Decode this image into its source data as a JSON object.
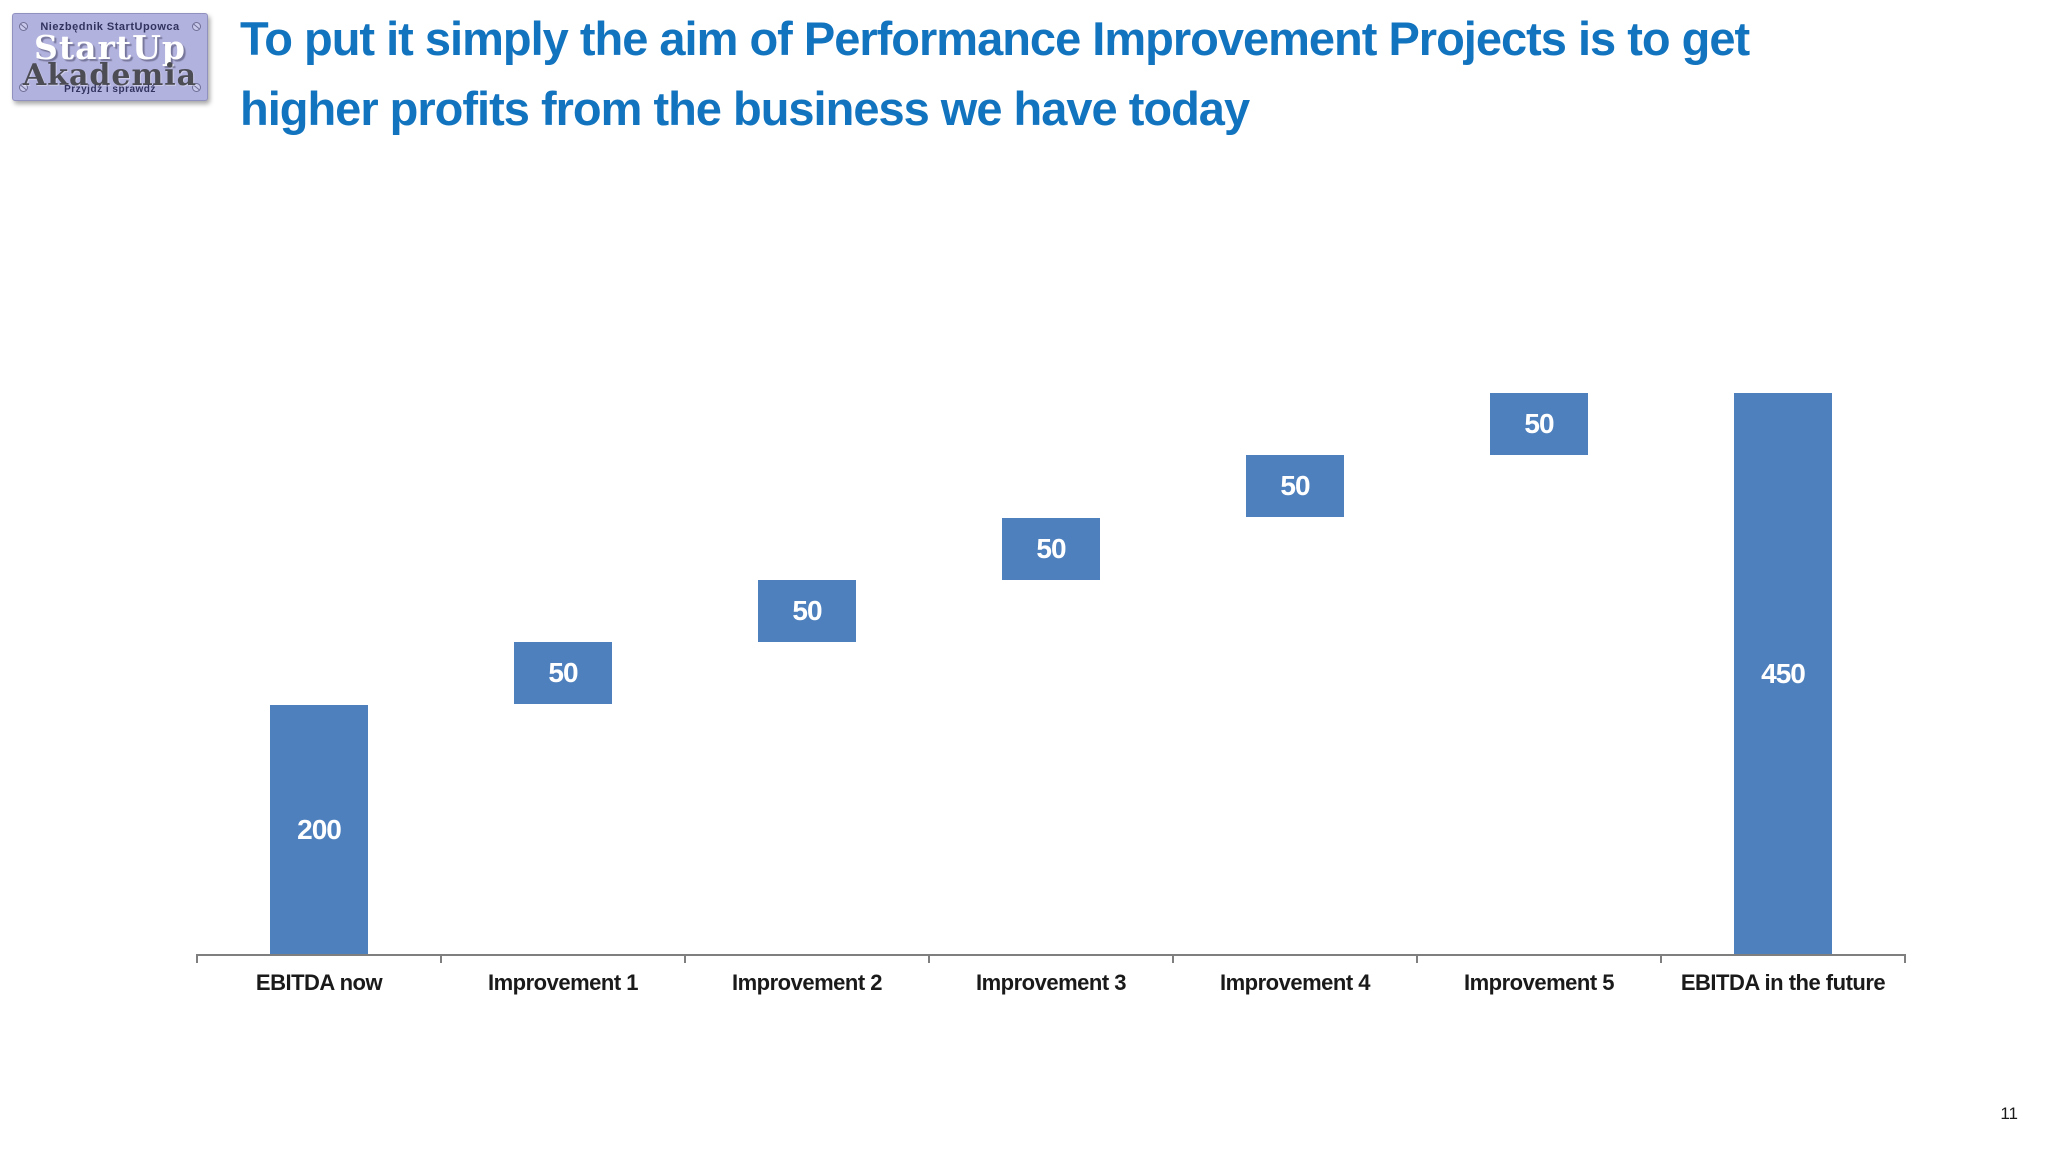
{
  "slide": {
    "page_number": "11"
  },
  "logo": {
    "top_text": "Niezbędnik StartUpowca",
    "title_line1": "StartUp",
    "title_line2": "Akademia",
    "bottom_text": "Przyjdź i sprawdź"
  },
  "title": {
    "lines": [
      "To put it simply the aim of Performance Improvement Projects is to get",
      "higher profits from the business we have today"
    ],
    "color": "#1273BE"
  },
  "chart_data": {
    "type": "bar",
    "subtype": "waterfall",
    "title": "",
    "categories": [
      "EBITDA now",
      "Improvement 1",
      "Improvement 2",
      "Improvement 3",
      "Improvement 4",
      "Improvement 5",
      "EBITDA in the future"
    ],
    "values": [
      200,
      50,
      50,
      50,
      50,
      50,
      450
    ],
    "starts": [
      0,
      200,
      250,
      300,
      350,
      400,
      0
    ],
    "value_labels": [
      "200",
      "50",
      "50",
      "50",
      "50",
      "50",
      "450"
    ],
    "value_label_position": "center-inside",
    "bar_color": "#4e80bd",
    "value_label_color": "#ffffff",
    "category_label_color": "#1a1a1a",
    "axis_color": "#7f7f7f",
    "xlabel": "",
    "ylabel": "",
    "ylim": [
      0,
      450
    ],
    "gridlines": false,
    "legend": false,
    "y_axis_visible": false
  }
}
